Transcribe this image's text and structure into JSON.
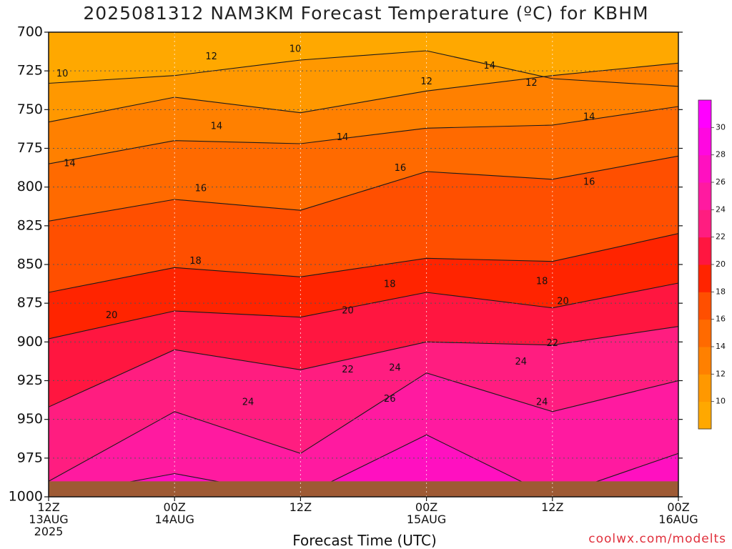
{
  "chart_data": {
    "type": "heatmap",
    "title": "2025081312 NAM3KM Forecast Temperature (ºC) for KBHM",
    "xlabel": "Forecast Time (UTC)",
    "ylabel": "",
    "yaxis": {
      "ticks": [
        700,
        725,
        750,
        775,
        800,
        825,
        850,
        875,
        900,
        925,
        950,
        975,
        1000
      ],
      "ylim": [
        700,
        1000
      ],
      "inverted": true
    },
    "xaxis": {
      "ticks": [
        {
          "line1": "12Z",
          "line2": "13AUG",
          "line3": "2025"
        },
        {
          "line1": "00Z",
          "line2": "14AUG",
          "line3": ""
        },
        {
          "line1": "12Z",
          "line2": "",
          "line3": ""
        },
        {
          "line1": "00Z",
          "line2": "15AUG",
          "line3": ""
        },
        {
          "line1": "12Z",
          "line2": "",
          "line3": ""
        },
        {
          "line1": "00Z",
          "line2": "16AUG",
          "line3": ""
        }
      ]
    },
    "colorbar": {
      "levels": [
        8,
        10,
        12,
        14,
        16,
        18,
        20,
        22,
        24,
        26,
        28,
        30,
        32
      ],
      "labels": [
        10,
        12,
        14,
        16,
        18,
        20,
        22,
        24,
        26,
        28,
        30
      ],
      "colors": [
        "#ffa800",
        "#ff9800",
        "#ff8000",
        "#ff6a00",
        "#ff4f00",
        "#ff2400",
        "#ff1640",
        "#ff1d80",
        "#ff1aa0",
        "#ff10c0",
        "#ff08e0",
        "#ff00ff"
      ]
    },
    "hours": [
      0,
      12,
      24,
      36,
      48,
      60
    ],
    "isotherms": [
      {
        "temp": 10,
        "p": [
          733,
          728,
          718,
          712,
          730,
          735
        ]
      },
      {
        "temp": 12,
        "p": [
          758,
          742,
          752,
          738,
          728,
          720
        ]
      },
      {
        "temp": 14,
        "p": [
          785,
          770,
          772,
          762,
          760,
          748
        ]
      },
      {
        "temp": 16,
        "p": [
          822,
          808,
          815,
          790,
          795,
          780
        ]
      },
      {
        "temp": 18,
        "p": [
          868,
          852,
          858,
          846,
          848,
          830
        ]
      },
      {
        "temp": 20,
        "p": [
          898,
          880,
          884,
          868,
          878,
          862
        ]
      },
      {
        "temp": 22,
        "p": [
          942,
          905,
          918,
          900,
          902,
          890
        ]
      },
      {
        "temp": 24,
        "p": [
          990,
          945,
          972,
          920,
          945,
          925
        ]
      },
      {
        "temp": 26,
        "p": [
          1000,
          985,
          1000,
          960,
          1000,
          972
        ]
      }
    ],
    "contour_labels": [
      {
        "temp": 10,
        "hour": 1.3,
        "p": 727
      },
      {
        "temp": 10,
        "hour": 23.5,
        "p": 711
      },
      {
        "temp": 12,
        "hour": 15.5,
        "p": 716
      },
      {
        "temp": 12,
        "hour": 36.0,
        "p": 732
      },
      {
        "temp": 12,
        "hour": 46.0,
        "p": 733
      },
      {
        "temp": 14,
        "hour": 16.0,
        "p": 761
      },
      {
        "temp": 14,
        "hour": 28.0,
        "p": 768
      },
      {
        "temp": 14,
        "hour": 42.0,
        "p": 722
      },
      {
        "temp": 14,
        "hour": 2.0,
        "p": 785
      },
      {
        "temp": 14,
        "hour": 51.5,
        "p": 755
      },
      {
        "temp": 16,
        "hour": 14.5,
        "p": 801
      },
      {
        "temp": 16,
        "hour": 33.5,
        "p": 788
      },
      {
        "temp": 16,
        "hour": 51.5,
        "p": 797
      },
      {
        "temp": 18,
        "hour": 14.0,
        "p": 848
      },
      {
        "temp": 18,
        "hour": 32.5,
        "p": 863
      },
      {
        "temp": 18,
        "hour": 47.0,
        "p": 861
      },
      {
        "temp": 20,
        "hour": 6.0,
        "p": 883
      },
      {
        "temp": 20,
        "hour": 28.5,
        "p": 880
      },
      {
        "temp": 20,
        "hour": 49.0,
        "p": 874
      },
      {
        "temp": 22,
        "hour": 28.5,
        "p": 918
      },
      {
        "temp": 22,
        "hour": 48.0,
        "p": 901
      },
      {
        "temp": 24,
        "hour": 19.0,
        "p": 939
      },
      {
        "temp": 24,
        "hour": 33.0,
        "p": 917
      },
      {
        "temp": 24,
        "hour": 45.0,
        "p": 913
      },
      {
        "temp": 24,
        "hour": 47.0,
        "p": 939
      },
      {
        "temp": 26,
        "hour": 32.5,
        "p": 937
      }
    ],
    "ground_level_hpa": 990,
    "grid": true
  },
  "footer": {
    "credit": "coolwx.com/modelts"
  },
  "colors": {
    "ground": "#9e5a34",
    "contour": "#1a1a1a",
    "grid": "#555555"
  }
}
